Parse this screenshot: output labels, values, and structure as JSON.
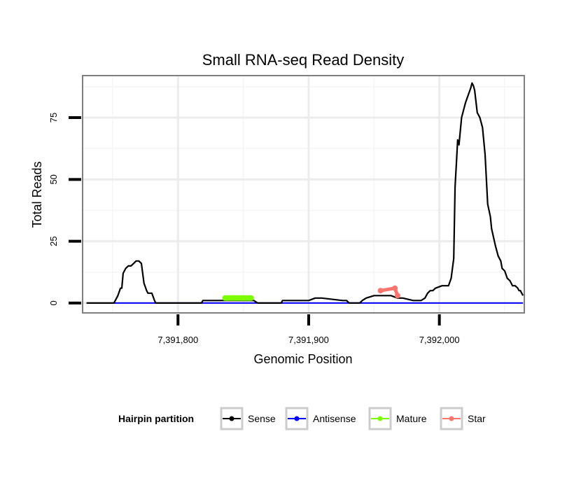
{
  "chart_data": {
    "type": "line",
    "title": "Small RNA-seq Read Density",
    "xlabel": "Genomic Position",
    "ylabel": "Total Reads",
    "xlim": [
      7391727,
      7392065
    ],
    "ylim": [
      -4,
      92
    ],
    "x_ticks": [
      {
        "value": 7391800,
        "label": "7,391,800"
      },
      {
        "value": 7391900,
        "label": "7,391,900"
      },
      {
        "value": 7392000,
        "label": "7,392,000"
      }
    ],
    "y_ticks": [
      {
        "value": 0,
        "label": "0"
      },
      {
        "value": 25,
        "label": "25"
      },
      {
        "value": 50,
        "label": "50"
      },
      {
        "value": 75,
        "label": "75"
      }
    ],
    "legend": {
      "title": "Hairpin partition",
      "position": "bottom",
      "entries": [
        {
          "name": "Sense",
          "color": "#000000"
        },
        {
          "name": "Antisense",
          "color": "#0000ff"
        },
        {
          "name": "Mature",
          "color": "#7cfc00"
        },
        {
          "name": "Star",
          "color": "#f8766d"
        }
      ]
    },
    "series": [
      {
        "name": "Sense",
        "color": "#000000",
        "x": [
          7391730,
          7391751,
          7391752,
          7391754,
          7391756,
          7391757,
          7391758,
          7391759,
          7391760,
          7391762,
          7391764,
          7391766,
          7391768,
          7391770,
          7391772,
          7391774,
          7391776,
          7391777,
          7391778,
          7391780,
          7391782,
          7391783,
          7391784,
          7391786,
          7391798,
          7391818,
          7391819,
          7391835,
          7391841,
          7391858,
          7391861,
          7391869,
          7391873,
          7391879,
          7391880,
          7391895,
          7391900,
          7391905,
          7391910,
          7391926,
          7391929,
          7391931,
          7391938,
          7391939,
          7391941,
          7391944,
          7391950,
          7391952,
          7391955,
          7391963,
          7391968,
          7391972,
          7391980,
          7391985,
          7391986,
          7391989,
          7391991,
          7391993,
          7391995,
          7391997,
          7392002,
          7392004,
          7392007,
          7392009,
          7392011,
          7392012,
          7392013,
          7392014,
          7392015,
          7392017,
          7392019,
          7392020,
          7392022,
          7392024,
          7392025,
          7392026,
          7392027,
          7392029,
          7392030,
          7392031,
          7392033,
          7392035,
          7392037,
          7392039,
          7392040,
          7392043,
          7392045,
          7392047,
          7392048,
          7392050,
          7392052,
          7392054,
          7392056,
          7392058,
          7392060,
          7392061,
          7392062,
          7392063,
          7392064
        ],
        "y": [
          0,
          0,
          1,
          3,
          6,
          6,
          12,
          13,
          14,
          15,
          15,
          16,
          17,
          17,
          16,
          8,
          5,
          4,
          4,
          4,
          1,
          0,
          0,
          0,
          0,
          0,
          1,
          1,
          1,
          1,
          0,
          0,
          0,
          0,
          1,
          1,
          1,
          2,
          2,
          1,
          1,
          0,
          0,
          0,
          1,
          2,
          3,
          3,
          3,
          3,
          2,
          2,
          1,
          1,
          1,
          2,
          4,
          5,
          5,
          6,
          7,
          7,
          7,
          10,
          18,
          47,
          56,
          66,
          64,
          75,
          79,
          81,
          84,
          87,
          89,
          88,
          86,
          77,
          76,
          75,
          71,
          60,
          40,
          35,
          30,
          23,
          19,
          17,
          14,
          13,
          10,
          9,
          7,
          7,
          6,
          5,
          5,
          4,
          3
        ]
      },
      {
        "name": "Antisense",
        "color": "#0000ff",
        "x": [
          7391750,
          7392064
        ],
        "y": [
          0,
          0
        ]
      },
      {
        "name": "Mature",
        "color": "#7cfc00",
        "x": [
          7391836,
          7391856
        ],
        "y": [
          2,
          2
        ]
      },
      {
        "name": "Star",
        "color": "#f8766d",
        "x": [
          7391955,
          7391966,
          7391968
        ],
        "y": [
          5,
          6,
          3
        ]
      }
    ]
  }
}
